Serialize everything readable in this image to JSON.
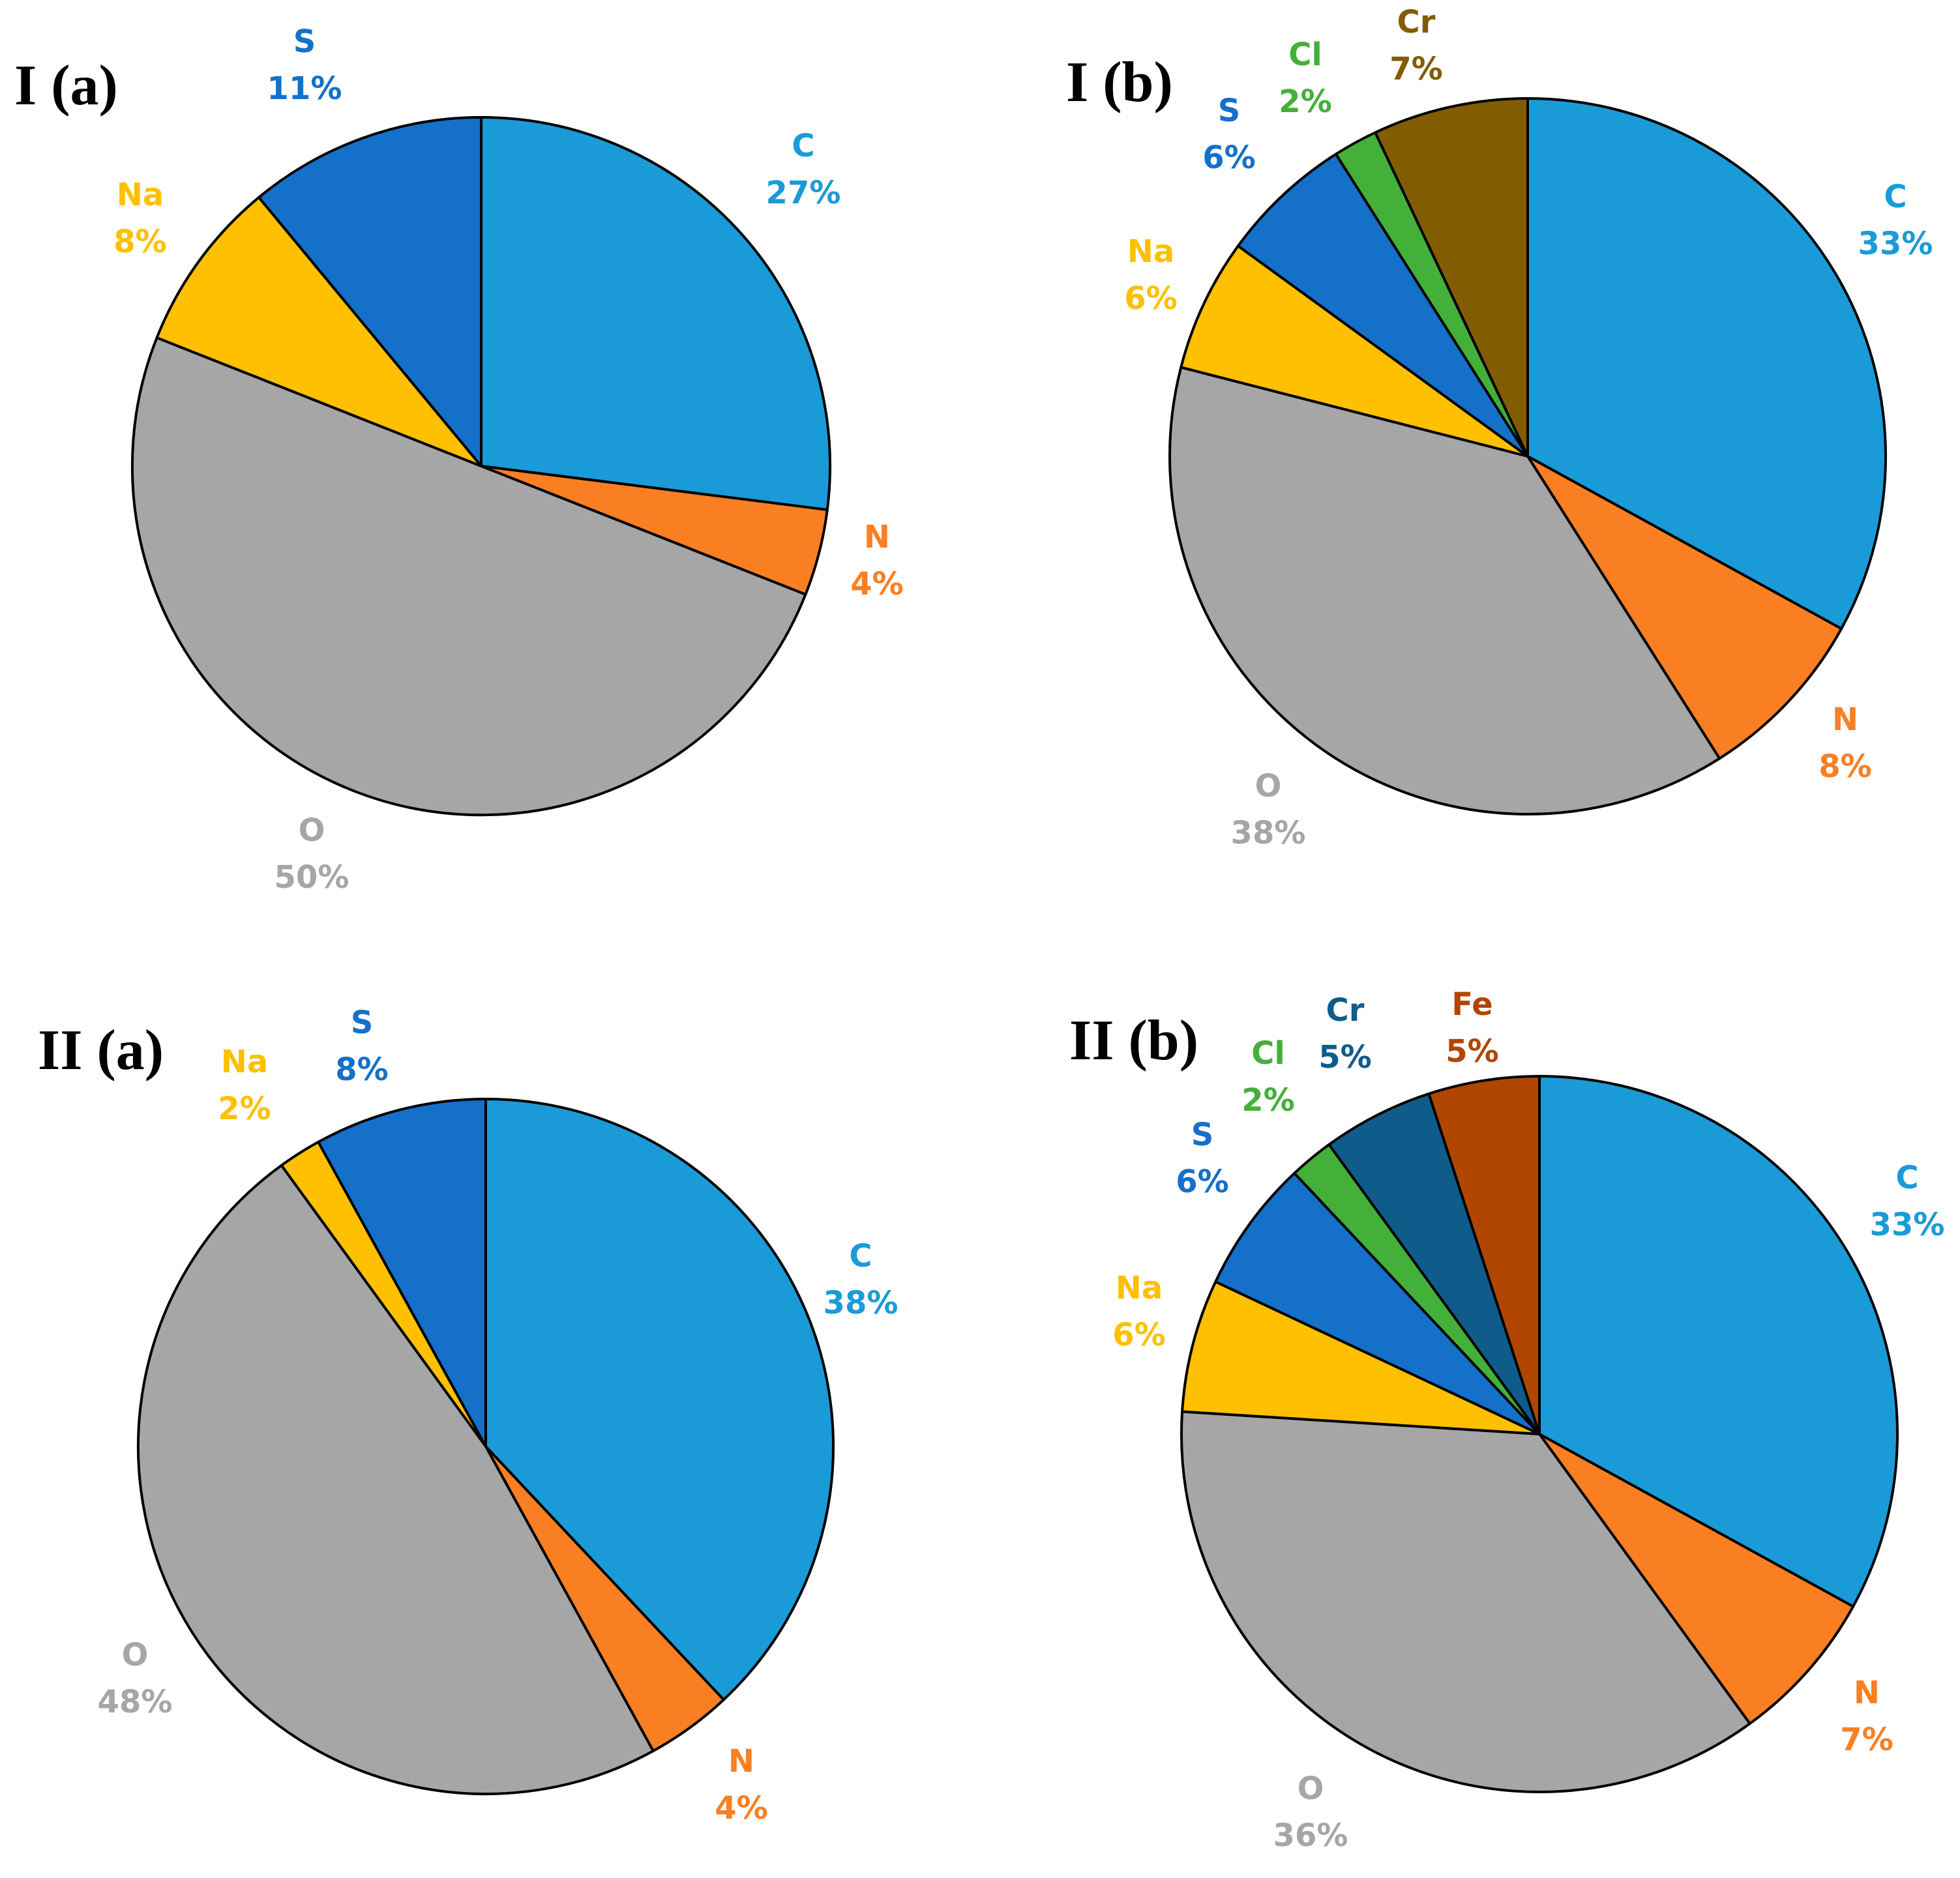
{
  "chart_data": [
    {
      "type": "pie",
      "title": "I (a)",
      "start": "12 o'clock, clockwise",
      "slices": [
        {
          "label": "C",
          "value": 27,
          "display": "27%",
          "color": "#1a9bd7"
        },
        {
          "label": "N",
          "value": 4,
          "display": "4%",
          "color": "#fa7f23"
        },
        {
          "label": "O",
          "value": 50,
          "display": "50%",
          "color": "#a6a6a6"
        },
        {
          "label": "Na",
          "value": 8,
          "display": "8%",
          "color": "#fec000"
        },
        {
          "label": "S",
          "value": 11,
          "display": "11%",
          "color": "#1570c9"
        }
      ]
    },
    {
      "type": "pie",
      "title": "I (b)",
      "start": "12 o'clock, clockwise",
      "slices": [
        {
          "label": "C",
          "value": 33,
          "display": "33%",
          "color": "#1a9bd7"
        },
        {
          "label": "N",
          "value": 8,
          "display": "8%",
          "color": "#fa7f23"
        },
        {
          "label": "O",
          "value": 38,
          "display": "38%",
          "color": "#a6a6a6"
        },
        {
          "label": "Na",
          "value": 6,
          "display": "6%",
          "color": "#fec000"
        },
        {
          "label": "S",
          "value": 6,
          "display": "6%",
          "color": "#1570c9"
        },
        {
          "label": "Cl",
          "value": 2,
          "display": "2%",
          "color": "#43b03a"
        },
        {
          "label": "Cr",
          "value": 7,
          "display": "7%",
          "color": "#825c00"
        }
      ]
    },
    {
      "type": "pie",
      "title": "II (a)",
      "start": "12 o'clock, clockwise",
      "slices": [
        {
          "label": "C",
          "value": 38,
          "display": "38%",
          "color": "#1a9bd7"
        },
        {
          "label": "N",
          "value": 4,
          "display": "4%",
          "color": "#fa7f23"
        },
        {
          "label": "O",
          "value": 48,
          "display": "48%",
          "color": "#a6a6a6"
        },
        {
          "label": "Na",
          "value": 2,
          "display": "2%",
          "color": "#fec000"
        },
        {
          "label": "S",
          "value": 8,
          "display": "8%",
          "color": "#1570c9"
        }
      ]
    },
    {
      "type": "pie",
      "title": "II (b)",
      "start": "12 o'clock, clockwise",
      "slices": [
        {
          "label": "C",
          "value": 33,
          "display": "33%",
          "color": "#1a9bd7"
        },
        {
          "label": "N",
          "value": 7,
          "display": "7%",
          "color": "#fa7f23"
        },
        {
          "label": "O",
          "value": 36,
          "display": "36%",
          "color": "#a6a6a6"
        },
        {
          "label": "Na",
          "value": 6,
          "display": "6%",
          "color": "#fec000"
        },
        {
          "label": "S",
          "value": 6,
          "display": "6%",
          "color": "#1570c9"
        },
        {
          "label": "Cl",
          "value": 2,
          "display": "2%",
          "color": "#43b03a"
        },
        {
          "label": "Cr",
          "value": 5,
          "display": "5%",
          "color": "#0f5c8a"
        },
        {
          "label": "Fe",
          "value": 5,
          "display": "5%",
          "color": "#b04600"
        }
      ]
    }
  ]
}
